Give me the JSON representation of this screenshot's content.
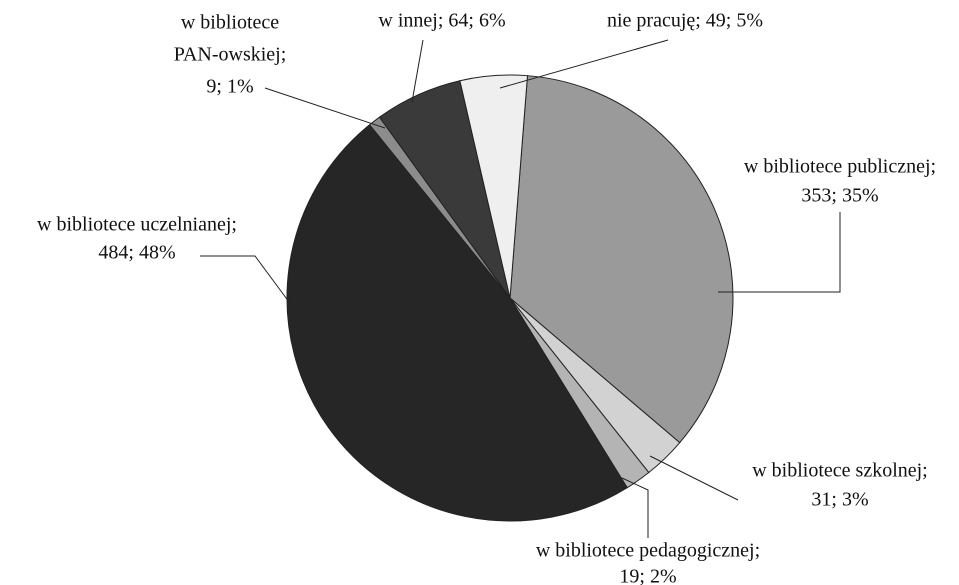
{
  "chart_data": {
    "type": "pie",
    "values": [
      353,
      31,
      19,
      484,
      9,
      64,
      49
    ],
    "value_labels": [
      [
        "w bibliotece publicznej;",
        "353; 35%"
      ],
      [
        "w bibliotece szkolnej;",
        "31; 3%"
      ],
      [
        "w bibliotece pedagogicznej;",
        "19; 2%"
      ],
      [
        "w bibliotece uczelnianej;",
        "484; 48%"
      ],
      [
        "w bibliotece",
        "PAN-owskiej;",
        "9; 1%"
      ],
      [
        "w innej; 64; 6%"
      ],
      [
        "nie pracuję; 49; 5%"
      ]
    ],
    "colors": [
      "#9a9a9a",
      "#d2d2d2",
      "#b4b4b4",
      "#262626",
      "#8c8c8c",
      "#3a3a3a",
      "#efefef"
    ]
  }
}
